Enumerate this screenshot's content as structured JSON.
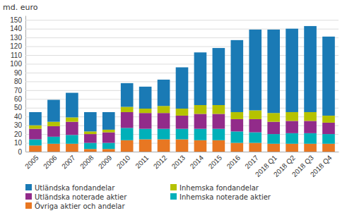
{
  "chart_data": {
    "type": "bar",
    "stacked": true,
    "ylabel": "md. euro",
    "categories": [
      "2005",
      "2006",
      "2007",
      "2008",
      "2009",
      "2010",
      "2011",
      "2012",
      "2013",
      "2014",
      "2015",
      "2016",
      "2017",
      "2018 Q1",
      "2018 Q2",
      "2018 Q3",
      "2018 Q4"
    ],
    "series": [
      {
        "name": "Övriga aktier och andelar",
        "color": "#e87722",
        "values": [
          7,
          9,
          9,
          3,
          3,
          13,
          14,
          14,
          14,
          13,
          13,
          10,
          10,
          9,
          9,
          9,
          9
        ]
      },
      {
        "name": "Inhemska noterade aktier",
        "color": "#00b0b9",
        "values": [
          7,
          8,
          10,
          7,
          7,
          14,
          12,
          12,
          12,
          13,
          13,
          13,
          12,
          11,
          12,
          12,
          11
        ]
      },
      {
        "name": "Utländska noterade aktier",
        "color": "#922b8a",
        "values": [
          12,
          12,
          15,
          10,
          12,
          18,
          18,
          18,
          15,
          17,
          17,
          14,
          15,
          14,
          14,
          14,
          13
        ]
      },
      {
        "name": "Inhemska fondandelar",
        "color": "#b5c200",
        "values": [
          4,
          5,
          5,
          3,
          3,
          6,
          5,
          8,
          8,
          10,
          10,
          8,
          10,
          10,
          10,
          10,
          8
        ]
      },
      {
        "name": "Utländska fondandelar",
        "color": "#1a7ab5",
        "values": [
          15,
          25,
          28,
          22,
          20,
          27,
          25,
          30,
          47,
          60,
          65,
          82,
          92,
          95,
          95,
          98,
          90
        ]
      }
    ],
    "ylim": [
      0,
      155
    ],
    "yticks": [
      0,
      10,
      20,
      30,
      40,
      50,
      60,
      70,
      80,
      90,
      100,
      110,
      120,
      130,
      140,
      150
    ],
    "grid": true,
    "legend": "bottom"
  }
}
